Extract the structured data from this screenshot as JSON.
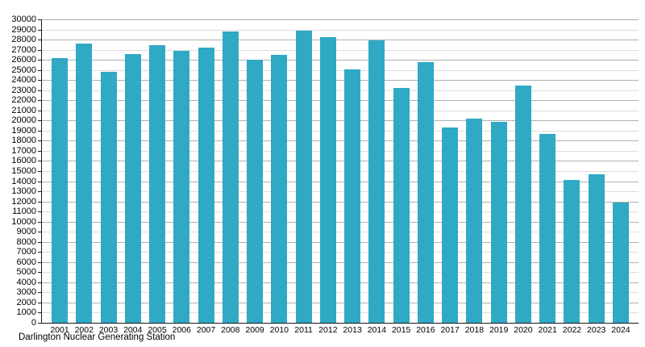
{
  "caption": "Darlington Nuclear Generating Station",
  "chart_data": {
    "type": "bar",
    "title": "",
    "xlabel": "",
    "ylabel": "",
    "caption": "Darlington Nuclear Generating Station",
    "categories": [
      "2001",
      "2002",
      "2003",
      "2004",
      "2005",
      "2006",
      "2007",
      "2008",
      "2009",
      "2010",
      "2011",
      "2012",
      "2013",
      "2014",
      "2015",
      "2016",
      "2017",
      "2018",
      "2019",
      "2020",
      "2021",
      "2022",
      "2023",
      "2024"
    ],
    "values": [
      26150,
      27600,
      24850,
      26550,
      27450,
      26850,
      27200,
      28800,
      26000,
      26500,
      28900,
      28250,
      25050,
      27900,
      23250,
      25750,
      19300,
      20200,
      19900,
      23450,
      18700,
      14100,
      14700,
      11900
    ],
    "ylim": [
      0,
      30000
    ],
    "ytick_interval": 1000,
    "grid": true,
    "legend_position": "none",
    "bar_color": "#2fa9c4",
    "gridline_major_color": "#b0b0b0",
    "gridline_minor_color": "#dddddd",
    "axis_color": "#1a1a1a",
    "text_color": "#000000",
    "background_color": "#ffffff"
  }
}
